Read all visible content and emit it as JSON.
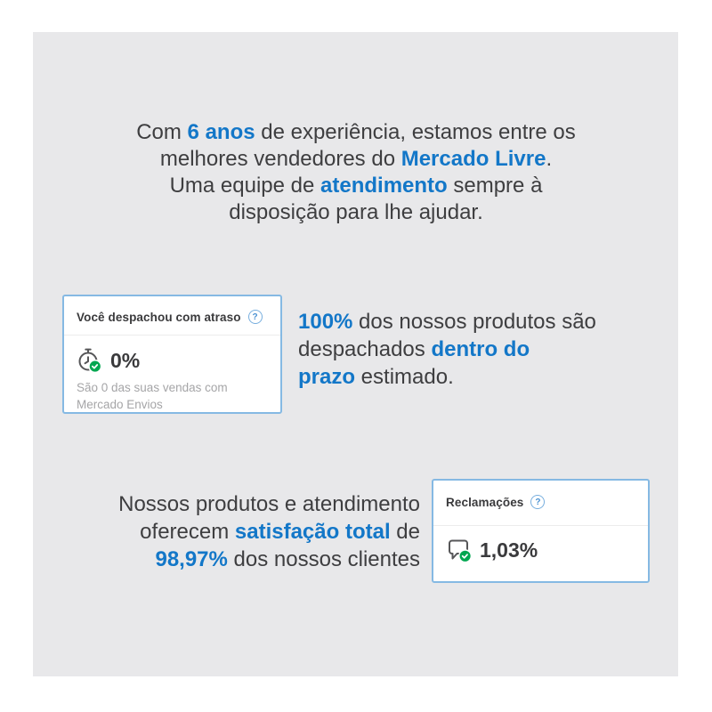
{
  "colors": {
    "accent": "#1377c8",
    "text_dark": "#3e3e40",
    "card_border": "#85b9e3",
    "caption": "#a5a5a7",
    "green": "#00a650",
    "canvas_bg": "#e8e8ea",
    "icon_stroke": "#565658"
  },
  "intro": {
    "segments": [
      {
        "t": "Com "
      },
      {
        "t": "6 anos",
        "hl": true
      },
      {
        "t": " de experiência, estamos entre os"
      },
      {
        "br": true
      },
      {
        "t": "melhores vendedores do "
      },
      {
        "t": "Mercado Livre",
        "hl": true
      },
      {
        "t": "."
      },
      {
        "br": true
      },
      {
        "t": "Uma equipe de "
      },
      {
        "t": "atendimento",
        "hl": true
      },
      {
        "t": " sempre à"
      },
      {
        "br": true
      },
      {
        "t": "disposição para lhe ajudar."
      }
    ]
  },
  "shipping_section": {
    "card": {
      "title": "Você despachou com atraso",
      "help_glyph": "?",
      "value": "0%",
      "caption": "São 0 das suas vendas com Mercado Envios",
      "icon": "stopwatch-check-icon"
    },
    "text": {
      "segments": [
        {
          "t": "100%",
          "hl": true
        },
        {
          "t": " dos nossos produtos são"
        },
        {
          "br": true
        },
        {
          "t": "despachados "
        },
        {
          "t": "dentro do",
          "hl": true
        },
        {
          "br": true
        },
        {
          "t": "prazo",
          "hl": true
        },
        {
          "t": " estimado."
        }
      ]
    }
  },
  "satisfaction_section": {
    "text": {
      "segments": [
        {
          "t": "Nossos produtos e atendimento"
        },
        {
          "br": true
        },
        {
          "t": "oferecem "
        },
        {
          "t": "satisfação total",
          "hl": true
        },
        {
          "t": " de"
        },
        {
          "br": true
        },
        {
          "t": "98,97%",
          "hl": true
        },
        {
          "t": " dos nossos clientes"
        }
      ]
    },
    "card": {
      "title": "Reclamações",
      "help_glyph": "?",
      "value": "1,03%",
      "icon": "chat-bubble-check-icon"
    }
  }
}
